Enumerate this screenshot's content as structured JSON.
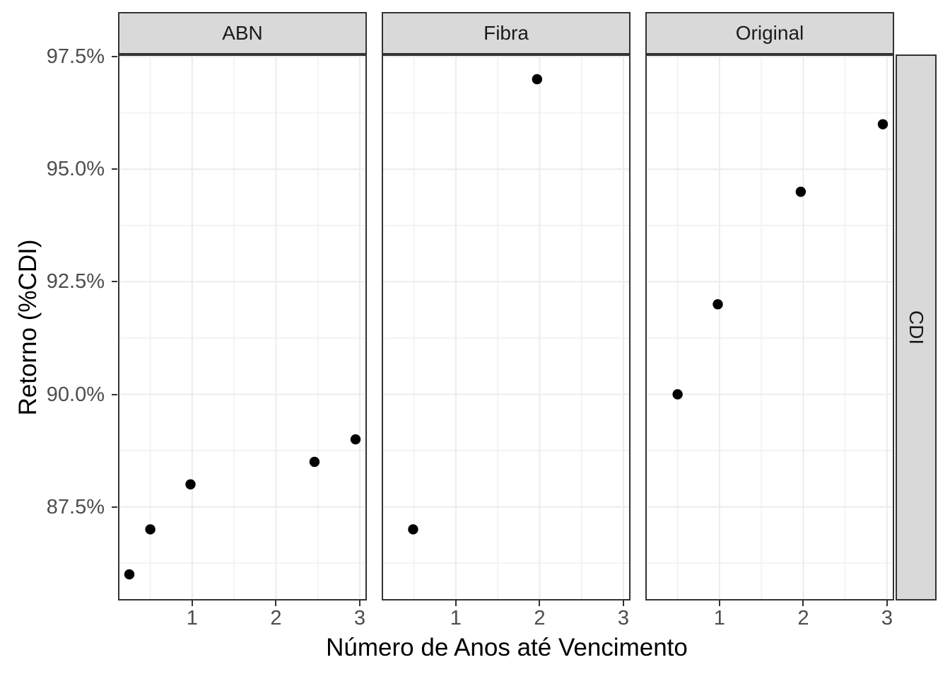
{
  "chart_data": {
    "type": "scatter",
    "title": "",
    "xlabel": "Número de Anos até Vencimento",
    "ylabel": "Retorno (%CDI)",
    "facet_row_label": "CDI",
    "facets": [
      {
        "label": "ABN",
        "points": [
          {
            "x": 0.25,
            "y": 86.0
          },
          {
            "x": 0.5,
            "y": 87.0
          },
          {
            "x": 0.98,
            "y": 88.0
          },
          {
            "x": 2.46,
            "y": 88.5
          },
          {
            "x": 2.95,
            "y": 89.0
          }
        ]
      },
      {
        "label": "Fibra",
        "points": [
          {
            "x": 0.49,
            "y": 87.0
          },
          {
            "x": 1.97,
            "y": 97.0
          }
        ]
      },
      {
        "label": "Original",
        "points": [
          {
            "x": 0.5,
            "y": 90.0
          },
          {
            "x": 0.98,
            "y": 92.0
          },
          {
            "x": 1.97,
            "y": 94.5
          },
          {
            "x": 2.95,
            "y": 96.0
          }
        ]
      }
    ],
    "x_domain": [
      0.115,
      3.085
    ],
    "y_domain": [
      85.42,
      97.55
    ],
    "x_ticks": [
      {
        "value": 1,
        "label": "1"
      },
      {
        "value": 2,
        "label": "2"
      },
      {
        "value": 3,
        "label": "3"
      }
    ],
    "y_ticks": [
      {
        "value": 87.5,
        "label": "87.5%"
      },
      {
        "value": 90.0,
        "label": "90.0%"
      },
      {
        "value": 92.5,
        "label": "92.5%"
      },
      {
        "value": 95.0,
        "label": "95.0%"
      },
      {
        "value": 97.5,
        "label": "97.5%"
      }
    ],
    "x_minor": [
      0.5,
      1.5,
      2.5
    ],
    "y_minor": [
      86.25,
      88.75,
      91.25,
      93.75,
      96.25
    ],
    "grid": true,
    "legend": "none",
    "colors": {
      "point": "#000000",
      "grid_major": "#ececec",
      "grid_minor": "#f1f1f1",
      "panel_border": "#333333",
      "strip_fill": "#d9d9d9",
      "axis_text": "#4d4d4d",
      "background": "#ffffff"
    }
  }
}
